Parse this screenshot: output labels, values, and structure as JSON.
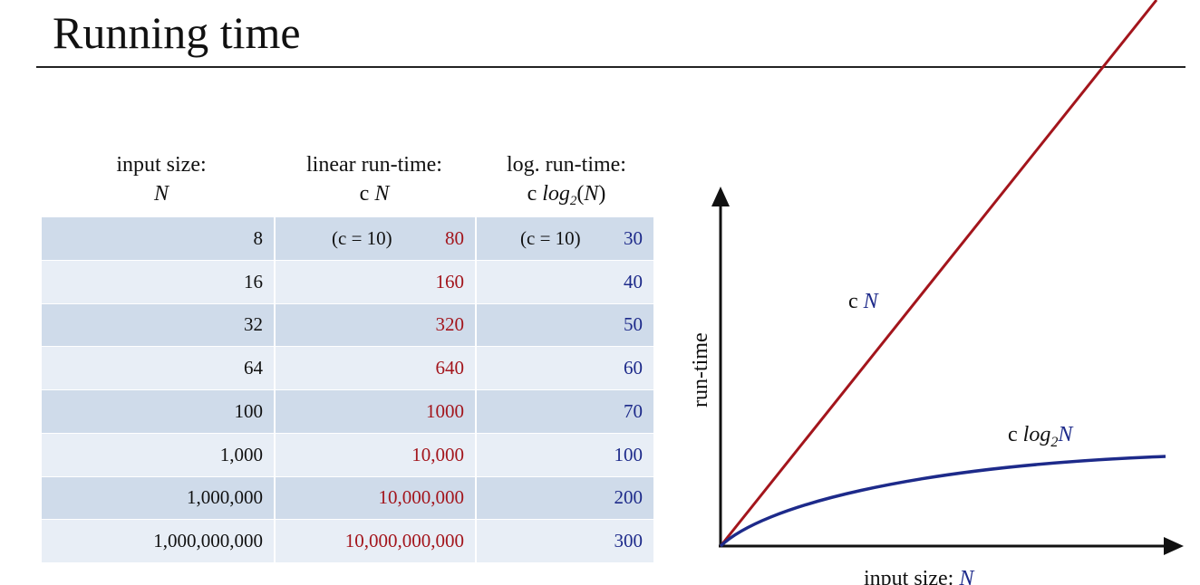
{
  "slide": {
    "title": "Running time"
  },
  "table": {
    "headers": [
      {
        "line1": "input size:",
        "line2": "N"
      },
      {
        "line1": "linear run-time:",
        "line2_prefix": "c ",
        "line2_var": "N"
      },
      {
        "line1": "log. run-time:",
        "line2_prefix": "c ",
        "line2_func": "log",
        "line2_sub": "2",
        "line2_arg": "(N)"
      }
    ],
    "constant_note": "(c = 10)",
    "rows": [
      {
        "n": "8",
        "linear": "80",
        "log": "30"
      },
      {
        "n": "16",
        "linear": "160",
        "log": "40"
      },
      {
        "n": "32",
        "linear": "320",
        "log": "50"
      },
      {
        "n": "64",
        "linear": "640",
        "log": "60"
      },
      {
        "n": "100",
        "linear": "1000",
        "log": "70"
      },
      {
        "n": "1,000",
        "linear": "10,000",
        "log": "100"
      },
      {
        "n": "1,000,000",
        "linear": "10,000,000",
        "log": "200"
      },
      {
        "n": "1,000,000,000",
        "linear": "10,000,000,000",
        "log": "300"
      }
    ]
  },
  "graph": {
    "y_axis_label": "run-time",
    "x_axis_label_prefix": "input size: ",
    "x_axis_label_var": "N",
    "linear_curve_label_prefix": "c ",
    "linear_curve_label_var": "N",
    "log_curve_label_prefix": "c ",
    "log_curve_label_func": "log",
    "log_curve_label_sub": "2",
    "log_curve_label_var": "N",
    "colors": {
      "linear": "#a3151c",
      "log": "#1d2a8a",
      "axes": "#111111"
    }
  },
  "colors": {
    "row_dark": "#cfdbea",
    "row_light": "#e8eef6",
    "linear_values": "#a3151c",
    "log_values": "#1d2a8a"
  }
}
